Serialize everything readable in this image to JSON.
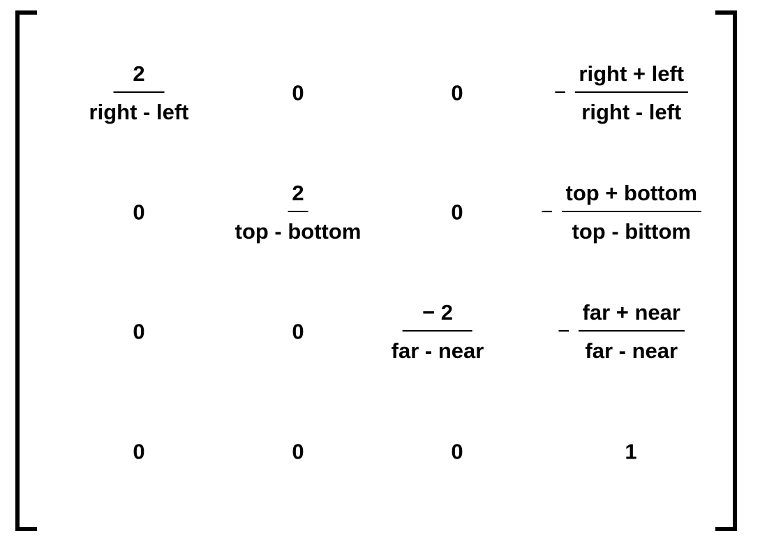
{
  "matrix": {
    "r0": {
      "c0": {
        "num": "2",
        "den": "right - left"
      },
      "c1": "0",
      "c2": "0",
      "c3": {
        "sign": "−",
        "num": "right + left",
        "den": "right - left"
      }
    },
    "r1": {
      "c0": "0",
      "c1": {
        "num": "2",
        "den": "top - bottom"
      },
      "c2": "0",
      "c3": {
        "sign": "−",
        "num": "top + bottom",
        "den": "top - bittom"
      }
    },
    "r2": {
      "c0": "0",
      "c1": "0",
      "c2": {
        "num": "− 2",
        "den": "far - near"
      },
      "c3": {
        "sign": "−",
        "num": "far + near",
        "den": "far - near"
      }
    },
    "r3": {
      "c0": "0",
      "c1": "0",
      "c2": "0",
      "c3": "1"
    }
  }
}
